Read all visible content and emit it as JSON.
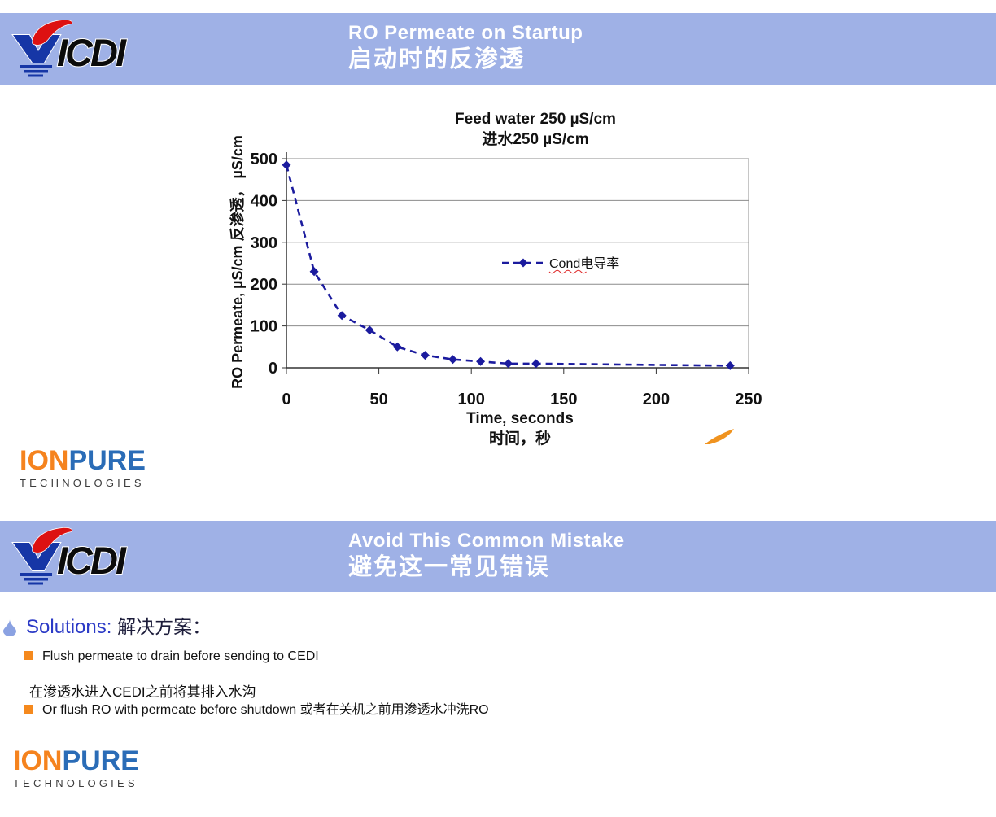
{
  "brand": {
    "vicdi_text": "ICDI"
  },
  "slide1": {
    "title_en": "RO Permeate on Startup",
    "title_zh": "启动时的反渗透"
  },
  "chart_data": {
    "type": "line",
    "title": "Feed water 250 µS/cm",
    "title_zh": "进水250 µS/cm",
    "series": [
      {
        "name": "Cond电导率",
        "x": [
          0,
          15,
          30,
          45,
          60,
          75,
          90,
          105,
          120,
          135,
          240
        ],
        "y": [
          485,
          230,
          125,
          90,
          50,
          30,
          20,
          15,
          10,
          10,
          5
        ]
      }
    ],
    "xlabel": "Time, seconds",
    "xlabel_zh": "时间，秒",
    "ylabel": "RO Permeate, µS/cm  反渗透，  µS/cm",
    "xlim": [
      0,
      250
    ],
    "ylim": [
      0,
      500
    ],
    "x_ticks": [
      0,
      50,
      100,
      150,
      200,
      250
    ],
    "y_ticks": [
      0,
      100,
      200,
      300,
      400,
      500
    ],
    "grid": true,
    "legend_position": "inside-center",
    "line_style": "dashed",
    "marker": "diamond",
    "line_color": "#1b1b9e"
  },
  "ionpure": {
    "word1": "ION",
    "word2": "PURE",
    "subtitle": "TECHNOLOGIES"
  },
  "slide2": {
    "title_en": "Avoid This Common Mistake",
    "title_zh": "避免这一常见错误",
    "solutions_en": "Solutions:",
    "solutions_zh": "解决方案：",
    "bullet1_en": "Flush permeate to drain before sending to CEDI",
    "bullet1_zh": "在渗透水进入CEDI之前将其排入水沟",
    "bullet2": "Or flush RO with permeate before shutdown 或者在关机之前用渗透水冲洗RO"
  },
  "colors": {
    "band": "#9fb1e6",
    "accent_orange": "#f5891d",
    "ionpure_orange": "#f5831e",
    "ionpure_blue": "#2a6cb7",
    "chart_line": "#1b1b9e",
    "solutions_blue": "#2b3ac6",
    "logo_red": "#dd1111",
    "logo_blue": "#1636a6"
  }
}
